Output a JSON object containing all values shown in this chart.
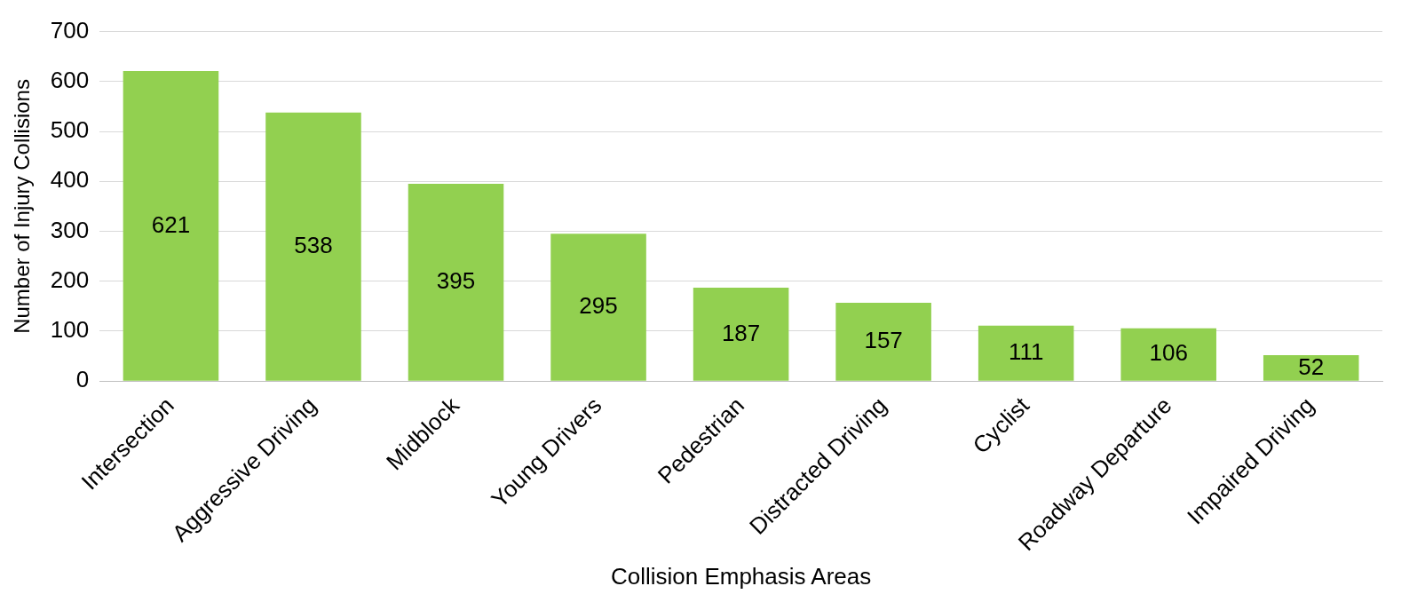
{
  "chart_data": {
    "type": "bar",
    "xlabel": "Collision Emphasis Areas",
    "ylabel": "Number of Injury Collisions",
    "categories": [
      "Intersection",
      "Aggressive Driving",
      "Midblock",
      "Young Drivers",
      "Pedestrian",
      "Distracted Driving",
      "Cyclist",
      "Roadway Departure",
      "Impaired Driving"
    ],
    "values": [
      621,
      538,
      395,
      295,
      187,
      157,
      111,
      106,
      52
    ],
    "color": "#92d050",
    "ylim": [
      0,
      700
    ],
    "yticks": [
      0,
      100,
      200,
      300,
      400,
      500,
      600,
      700
    ],
    "grid": "y",
    "data_labels": true,
    "legend": false
  }
}
